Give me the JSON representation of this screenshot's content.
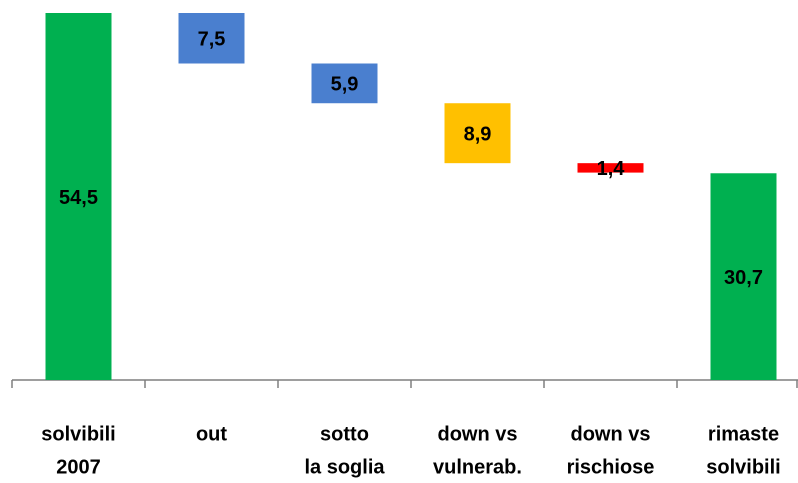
{
  "chart_data": {
    "type": "waterfall",
    "categories": [
      [
        "solvibili",
        "2007"
      ],
      [
        "out"
      ],
      [
        "sotto",
        "la soglia"
      ],
      [
        "down vs",
        "vulnerab."
      ],
      [
        "down vs",
        "rischiose"
      ],
      [
        "rimaste",
        "solvibili"
      ]
    ],
    "values": [
      54.5,
      7.5,
      5.9,
      8.9,
      1.4,
      30.7
    ],
    "value_labels": [
      "54,5",
      "7,5",
      "5,9",
      "8,9",
      "1,4",
      "30,7"
    ],
    "measures": [
      "total",
      "decrease",
      "decrease",
      "decrease",
      "decrease",
      "total"
    ],
    "colors": [
      "#00b050",
      "#4a7fcf",
      "#4a7fcf",
      "#ffc000",
      "#ff0000",
      "#00b050"
    ]
  }
}
